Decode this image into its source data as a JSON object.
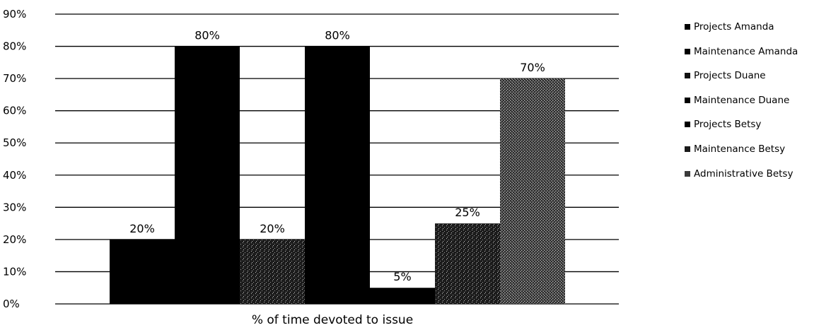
{
  "chart_data": {
    "type": "bar",
    "xlabel": "% of time devoted to issue",
    "ylim": [
      0,
      0.9
    ],
    "yticks": [
      "0%",
      "10%",
      "20%",
      "30%",
      "40%",
      "50%",
      "60%",
      "70%",
      "80%",
      "90%"
    ],
    "grid": true,
    "legend_position": "right",
    "series": [
      {
        "name": "Projects Amanda",
        "value": 0.2,
        "label": "20%",
        "color": "#000000"
      },
      {
        "name": "Maintenance Amanda",
        "value": 0.8,
        "label": "80%",
        "color": "#000000"
      },
      {
        "name": "Projects Duane",
        "value": 0.2,
        "label": "20%",
        "color": "#111111"
      },
      {
        "name": "Maintenance Duane",
        "value": 0.8,
        "label": "80%",
        "color": "#000000"
      },
      {
        "name": "Projects Betsy",
        "value": 0.05,
        "label": "5%",
        "color": "#000000"
      },
      {
        "name": "Maintenance Betsy",
        "value": 0.25,
        "label": "25%",
        "color": "#1a1a1a"
      },
      {
        "name": "Administrative Betsy",
        "value": 0.7,
        "label": "70%",
        "color": "#3a3a3a"
      }
    ]
  }
}
